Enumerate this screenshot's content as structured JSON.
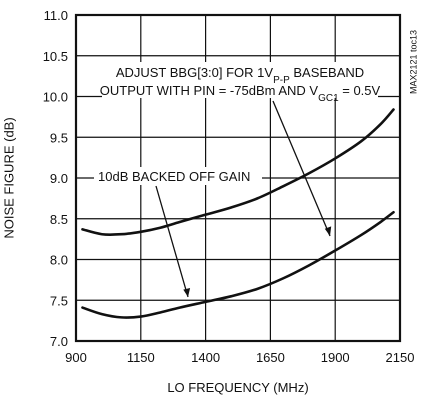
{
  "chart_data": {
    "type": "line",
    "xlabel": "LO FREQUENCY (MHz)",
    "ylabel": "NOISE FIGURE (dB)",
    "xlim": [
      900,
      2150
    ],
    "ylim": [
      7.0,
      11.0
    ],
    "grid": true,
    "x_ticks": [
      900,
      1150,
      1400,
      1650,
      1900,
      2150
    ],
    "y_ticks": [
      7.0,
      7.5,
      8.0,
      8.5,
      9.0,
      9.5,
      10.0,
      10.5,
      11.0
    ],
    "x_tick_labels": [
      "900",
      "1150",
      "1400",
      "1650",
      "1900",
      "2150"
    ],
    "y_tick_labels": [
      "7.0",
      "7.5",
      "8.0",
      "8.5",
      "9.0",
      "9.5",
      "10.0",
      "10.5",
      "11.0"
    ],
    "series": [
      {
        "x": [
          925,
          1000,
          1075,
          1150,
          1225,
          1300,
          1400,
          1500,
          1600,
          1700,
          1800,
          1900,
          2000,
          2075,
          2125
        ],
        "values": [
          8.37,
          8.31,
          8.31,
          8.34,
          8.39,
          8.46,
          8.55,
          8.64,
          8.75,
          8.9,
          9.06,
          9.24,
          9.45,
          9.66,
          9.84
        ]
      },
      {
        "x": [
          925,
          1000,
          1075,
          1150,
          1225,
          1300,
          1400,
          1500,
          1600,
          1700,
          1800,
          1900,
          2000,
          2075,
          2125
        ],
        "values": [
          7.41,
          7.33,
          7.29,
          7.3,
          7.35,
          7.41,
          7.48,
          7.55,
          7.64,
          7.77,
          7.93,
          8.11,
          8.3,
          8.46,
          8.58
        ]
      }
    ],
    "annotations": {
      "upper": {
        "line1": "ADJUST BBG[3:0] FOR 1V",
        "line1_sub": "P-P",
        "line1_tail": " BASEBAND",
        "line2": "OUTPUT WITH PIN = -75dBm AND V",
        "line2_sub": "GC1",
        "line2_tail": " = 0.5V"
      },
      "lower": "10dB BACKED OFF GAIN"
    }
  },
  "side_id": "MAX2121 toc13"
}
